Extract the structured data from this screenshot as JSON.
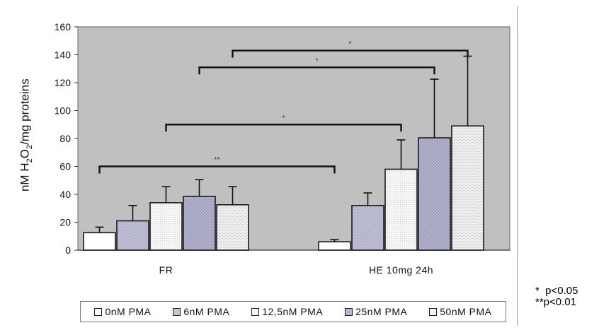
{
  "chart_data": {
    "type": "bar",
    "ylabel_parts": {
      "prefix": "nM H",
      "sub1": "2",
      "mid": "O",
      "sub2": "2",
      "suffix": "/mg proteins"
    },
    "ylim": [
      0,
      160
    ],
    "yticks": [
      0,
      20,
      40,
      60,
      80,
      100,
      120,
      140,
      160
    ],
    "categories": [
      "FR",
      "HE 10mg 24h"
    ],
    "series": [
      {
        "name": "0nM PMA",
        "color": "#ffffff",
        "values": [
          12.5,
          6
        ],
        "errors": [
          4,
          1.5
        ]
      },
      {
        "name": "6nM PMA",
        "color": "#c4c4dc",
        "values": [
          21,
          32
        ],
        "errors": [
          11,
          9
        ]
      },
      {
        "name": "12,5nM PMA",
        "color": "#f6f6f6",
        "values": [
          34,
          58
        ],
        "errors": [
          11.5,
          21
        ]
      },
      {
        "name": "25nM PMA",
        "color": "#b6b6ce",
        "values": [
          38.5,
          80.5
        ],
        "errors": [
          12,
          42
        ]
      },
      {
        "name": "50nM PMA",
        "color": "#f2f2f2",
        "values": [
          32.5,
          89
        ],
        "errors": [
          13,
          50
        ]
      }
    ],
    "grid": false,
    "plot_background": "#c0c0c0",
    "legend_position": "bottom",
    "significance_brackets": [
      {
        "from_series": 0,
        "from_category": 0,
        "to_series": 0,
        "to_category": 1,
        "y": 60,
        "label": "**"
      },
      {
        "from_series": 2,
        "from_category": 0,
        "to_series": 2,
        "to_category": 1,
        "y": 90,
        "label": "*"
      },
      {
        "from_series": 3,
        "from_category": 0,
        "to_series": 3,
        "to_category": 1,
        "y": 131,
        "label": "*"
      },
      {
        "from_series": 4,
        "from_category": 0,
        "to_series": 4,
        "to_category": 1,
        "y": 143,
        "label": "*"
      }
    ]
  },
  "notes": {
    "line1": "*  p<0.05",
    "line2": "**p<0.01"
  }
}
